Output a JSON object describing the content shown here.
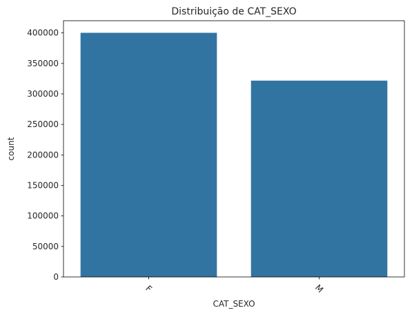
{
  "chart_data": {
    "type": "bar",
    "title": "Distribuição de CAT_SEXO",
    "xlabel": "CAT_SEXO",
    "ylabel": "count",
    "categories": [
      "F",
      "M"
    ],
    "values": [
      400200,
      321800
    ],
    "ylim": [
      0,
      420000
    ],
    "yticks": [
      0,
      50000,
      100000,
      150000,
      200000,
      250000,
      300000,
      350000,
      400000
    ],
    "bar_color": "#3274a1",
    "grid": false,
    "legend": "none",
    "x_tick_rotation": 45
  }
}
